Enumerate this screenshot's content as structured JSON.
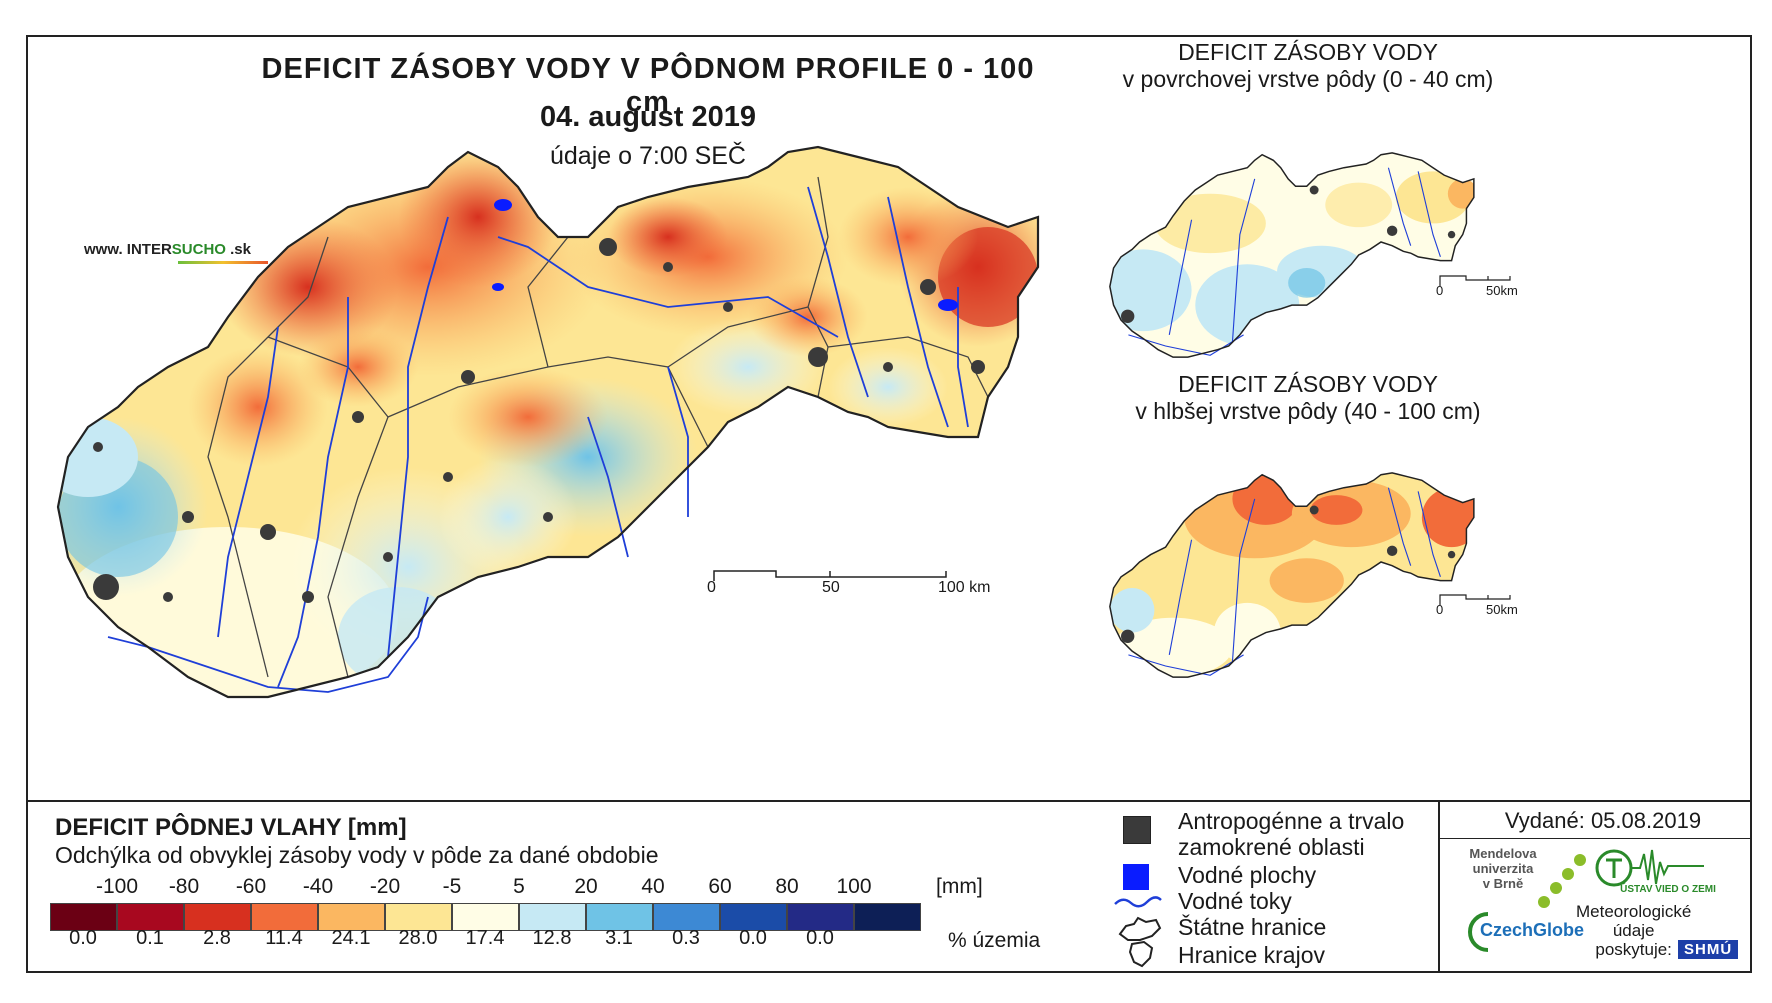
{
  "header": {
    "title": "DEFICIT ZÁSOBY VODY V PÔDNOM PROFILE 0 - 100 cm",
    "date": "04. august 2019",
    "time": "údaje o 7:00 SEČ",
    "site_prefix": "www. INTER",
    "site_highlight": "SUCHO",
    "site_suffix": " .sk"
  },
  "insets": [
    {
      "title_line1": "DEFICIT ZÁSOBY VODY",
      "title_line2": "v povrchovej vrstve pôdy (0 - 40 cm)",
      "scale_start": "0",
      "scale_end": "50km"
    },
    {
      "title_line1": "DEFICIT ZÁSOBY VODY",
      "title_line2": "v hlbšej vrstve pôdy (40 - 100 cm)",
      "scale_start": "0",
      "scale_end": "50km"
    }
  ],
  "main_scale": {
    "label_0": "0",
    "label_50": "50",
    "label_100": "100 km"
  },
  "legend": {
    "title": "DEFICIT PÔDNEJ VLAHY [mm]",
    "subtitle": "Odchýlka od obvyklej zásoby vody v pôde za dané obdobie",
    "unit": "[mm]",
    "pct_unit": "% územia",
    "ticks": [
      "-100",
      "-80",
      "-60",
      "-40",
      "-20",
      "-5",
      "5",
      "20",
      "40",
      "60",
      "80",
      "100"
    ],
    "classes": [
      {
        "color": "#6b0014",
        "pct": "0.0"
      },
      {
        "color": "#a8081f",
        "pct": "0.1"
      },
      {
        "color": "#d7301f",
        "pct": "2.8"
      },
      {
        "color": "#f26c3a",
        "pct": "11.4"
      },
      {
        "color": "#fbb761",
        "pct": "24.1"
      },
      {
        "color": "#fde694",
        "pct": "28.0"
      },
      {
        "color": "#fffde6",
        "pct": "17.4"
      },
      {
        "color": "#c6e9f4",
        "pct": "12.8"
      },
      {
        "color": "#6fc3e6",
        "pct": "3.1"
      },
      {
        "color": "#3d89d4",
        "pct": "0.3"
      },
      {
        "color": "#1b4ca8",
        "pct": "0.0"
      },
      {
        "color": "#232a86",
        "pct": "0.0"
      },
      {
        "color": "#0d1f56",
        "pct": ""
      }
    ]
  },
  "key": {
    "anthropogenic_line1": "Antropogénne a trvalo",
    "anthropogenic_line2": "zamokrené oblasti",
    "water_bodies": "Vodné plochy",
    "streams": "Vodné toky",
    "state_border": "Štátne hranice",
    "region_border": "Hranice krajov"
  },
  "credits": {
    "issued": "Vydané: 05.08.2019",
    "mendel_line1": "Mendelova",
    "mendel_line2": "univerzita",
    "mendel_line3": "v Brně",
    "czechglobe": "CzechGlobe",
    "uvgz": "ÚSTAV VIED O ZEMI",
    "met_line1": "Meteorologické",
    "met_line2": "údaje",
    "met_line3": "poskytuje:",
    "shmu": "SHMÚ"
  },
  "colors": {
    "river": "#1f3fd8",
    "urban": "#3a3a3a",
    "water": "#0a1cff",
    "border": "#222222"
  }
}
